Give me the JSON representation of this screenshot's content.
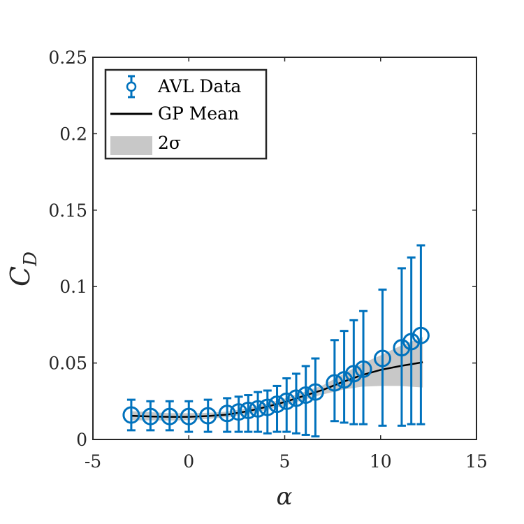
{
  "chart_data": {
    "type": "scatter",
    "xlabel": "α",
    "ylabel_main": "C",
    "ylabel_sub": "D",
    "xlim": [
      -5,
      15
    ],
    "ylim": [
      0,
      0.25
    ],
    "xticks": [
      -5,
      0,
      5,
      10,
      15
    ],
    "xtick_labels": [
      "-5",
      "0",
      "5",
      "10",
      "15"
    ],
    "yticks": [
      0,
      0.05,
      0.1,
      0.15,
      0.2,
      0.25
    ],
    "ytick_labels": [
      "0",
      "0.05",
      "0.1",
      "0.15",
      "0.2",
      "0.25"
    ],
    "grid": false,
    "legend_position": "top-left",
    "legend": [
      "AVL Data",
      "GP Mean",
      "2σ"
    ],
    "colors": {
      "data": "#0072BD",
      "mean": "#000000",
      "band": "#c8c8c8",
      "axes": "#262626"
    },
    "avl_data": {
      "name": "AVL Data",
      "x": [
        -3,
        -2,
        -1,
        0,
        1,
        2,
        2.6,
        3.1,
        3.6,
        4.1,
        4.6,
        5.1,
        5.6,
        6.1,
        6.6,
        7.6,
        8.1,
        8.6,
        9.1,
        10.1,
        11.1,
        11.6,
        12.1
      ],
      "y": [
        0.016,
        0.015,
        0.015,
        0.015,
        0.0155,
        0.017,
        0.018,
        0.019,
        0.02,
        0.021,
        0.023,
        0.025,
        0.027,
        0.029,
        0.031,
        0.037,
        0.039,
        0.043,
        0.046,
        0.053,
        0.06,
        0.064,
        0.068
      ],
      "yerr_low": [
        0.006,
        0.006,
        0.006,
        0.005,
        0.005,
        0.005,
        0.005,
        0.005,
        0.005,
        0.004,
        0.005,
        0.005,
        0.004,
        0.003,
        0.002,
        0.012,
        0.011,
        0.01,
        0.01,
        0.009,
        0.009,
        0.01,
        0.01
      ],
      "yerr_high": [
        0.026,
        0.025,
        0.025,
        0.025,
        0.026,
        0.027,
        0.028,
        0.029,
        0.031,
        0.032,
        0.035,
        0.04,
        0.043,
        0.048,
        0.053,
        0.065,
        0.071,
        0.078,
        0.084,
        0.098,
        0.112,
        0.119,
        0.127
      ]
    },
    "gp_mean": {
      "name": "GP Mean",
      "x": [
        -3,
        -2,
        -1,
        0,
        1,
        2,
        3,
        4,
        5,
        6,
        7,
        8,
        9,
        10,
        11,
        12.2
      ],
      "y": [
        0.0155,
        0.015,
        0.0148,
        0.0148,
        0.0153,
        0.0163,
        0.0183,
        0.0212,
        0.0245,
        0.0285,
        0.0325,
        0.0375,
        0.042,
        0.0455,
        0.048,
        0.0505
      ]
    },
    "band_2sigma": {
      "name": "2σ",
      "x": [
        -3,
        -2,
        -1,
        0,
        1,
        2,
        3,
        4,
        5,
        6,
        7,
        8,
        9,
        10,
        11,
        12.2
      ],
      "lower": [
        0.0125,
        0.0125,
        0.0124,
        0.0126,
        0.0134,
        0.0146,
        0.0165,
        0.0191,
        0.0222,
        0.026,
        0.0295,
        0.0325,
        0.0345,
        0.035,
        0.035,
        0.034
      ],
      "upper": [
        0.0185,
        0.0178,
        0.0172,
        0.0172,
        0.0174,
        0.0182,
        0.0203,
        0.0233,
        0.0268,
        0.031,
        0.0355,
        0.0425,
        0.0495,
        0.055,
        0.061,
        0.067
      ]
    }
  }
}
